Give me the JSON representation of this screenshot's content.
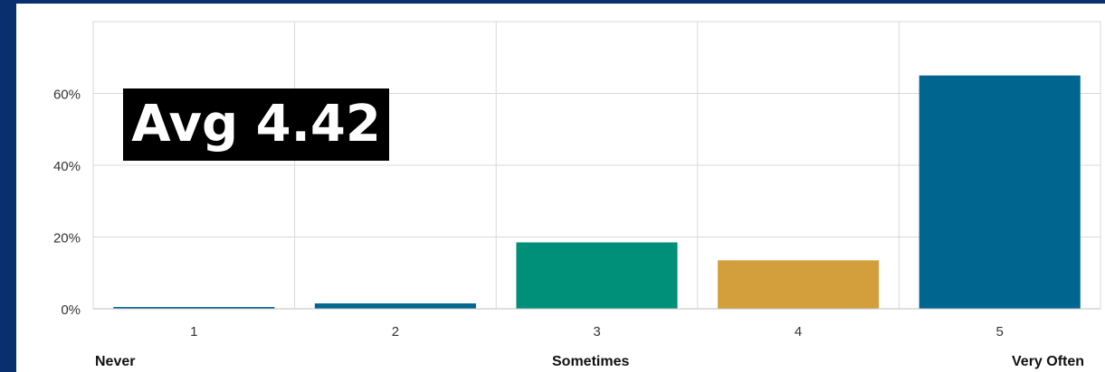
{
  "chart_data": {
    "type": "bar",
    "categories": [
      "1",
      "2",
      "3",
      "4",
      "5"
    ],
    "values": [
      0.5,
      1.5,
      18.5,
      13.5,
      65
    ],
    "colors": [
      "#00668f",
      "#00668f",
      "#00907a",
      "#d39e3c",
      "#00668f"
    ],
    "title": "",
    "xlabel": "",
    "ylabel": "",
    "ylim": [
      0,
      80
    ],
    "yticks": [
      0,
      20,
      40,
      60
    ],
    "ytick_labels": [
      "0%",
      "20%",
      "40%",
      "60%"
    ],
    "grid": true,
    "annotation": "Avg 4.42",
    "scale_anchors": [
      "Never",
      "Sometimes",
      "Very Often"
    ]
  },
  "theme": {
    "background": "#0a2f6e",
    "panel": "#ffffff",
    "gridline": "#d9d9d9"
  }
}
